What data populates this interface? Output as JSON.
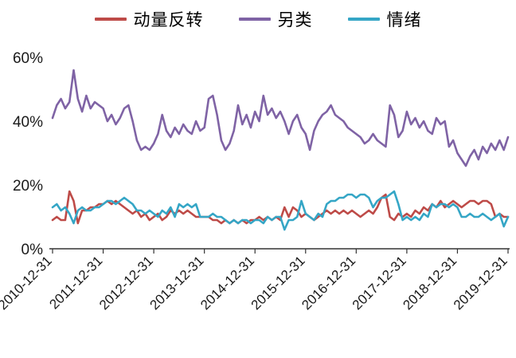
{
  "legend": [
    {
      "label": "动量反转",
      "color": "#be4b48"
    },
    {
      "label": "另类",
      "color": "#7f63a5"
    },
    {
      "label": "情绪",
      "color": "#35a6c6"
    }
  ],
  "chart_data": {
    "type": "line",
    "title": "",
    "xlabel": "",
    "ylabel": "",
    "ylim": [
      0,
      60
    ],
    "y_ticks": [
      0,
      20,
      40,
      60
    ],
    "y_tick_labels": [
      "0%",
      "20%",
      "40%",
      "60%"
    ],
    "x_tick_labels": [
      "2010-12-31",
      "2011-12-31",
      "2012-12-31",
      "2013-12-31",
      "2014-12-31",
      "2015-12-31",
      "2016-12-31",
      "2017-12-31",
      "2018-12-31",
      "2019-12-31"
    ],
    "x_tick_indices": [
      0,
      12,
      24,
      36,
      48,
      60,
      72,
      84,
      96,
      108
    ],
    "x_unit": "monthly points from 2010-12-31 to 2019-12-31",
    "grid": false,
    "legend_position": "top",
    "series": [
      {
        "name": "动量反转",
        "color": "#be4b48",
        "values": [
          9,
          10,
          9,
          9,
          18,
          15,
          8,
          12,
          12,
          13,
          13,
          14,
          14,
          15,
          14,
          15,
          14,
          13,
          12,
          11,
          12,
          10,
          11,
          9,
          10,
          11,
          9,
          10,
          12,
          11,
          12,
          11,
          12,
          11,
          10,
          10,
          10,
          10,
          9,
          9,
          8,
          9,
          8,
          9,
          8,
          9,
          8,
          9,
          9,
          10,
          9,
          10,
          9,
          10,
          9,
          13,
          10,
          13,
          12,
          10,
          11,
          10,
          9,
          10,
          11,
          12,
          11,
          12,
          11,
          12,
          11,
          12,
          11,
          10,
          11,
          12,
          11,
          13,
          16,
          17,
          10,
          9,
          11,
          10,
          11,
          10,
          12,
          11,
          13,
          12,
          14,
          13,
          15,
          13,
          14,
          15,
          14,
          13,
          14,
          15,
          15,
          14,
          15,
          15,
          14,
          10,
          11,
          10,
          10
        ]
      },
      {
        "name": "另类",
        "color": "#7f63a5",
        "values": [
          41,
          45,
          47,
          44,
          46,
          56,
          47,
          43,
          48,
          44,
          46,
          45,
          44,
          40,
          42,
          39,
          41,
          44,
          45,
          40,
          34,
          31,
          32,
          31,
          33,
          36,
          42,
          37,
          35,
          38,
          36,
          39,
          37,
          36,
          40,
          37,
          38,
          47,
          48,
          42,
          34,
          31,
          33,
          37,
          45,
          39,
          42,
          38,
          43,
          40,
          48,
          42,
          44,
          41,
          43,
          40,
          36,
          40,
          42,
          38,
          36,
          31,
          37,
          40,
          42,
          43,
          45,
          42,
          41,
          40,
          38,
          37,
          36,
          35,
          33,
          34,
          36,
          34,
          33,
          32,
          45,
          42,
          35,
          37,
          43,
          39,
          41,
          38,
          40,
          37,
          36,
          41,
          39,
          40,
          32,
          34,
          30,
          28,
          26,
          29,
          31,
          28,
          32,
          30,
          33,
          31,
          34,
          31,
          35
        ]
      },
      {
        "name": "情绪",
        "color": "#35a6c6",
        "values": [
          13,
          14,
          12,
          13,
          11,
          8,
          12,
          13,
          12,
          12,
          13,
          13,
          14,
          15,
          15,
          14,
          15,
          16,
          15,
          14,
          12,
          12,
          11,
          12,
          11,
          10,
          12,
          11,
          13,
          10,
          14,
          13,
          14,
          13,
          14,
          10,
          10,
          10,
          11,
          10,
          10,
          9,
          8,
          9,
          8,
          9,
          9,
          8,
          9,
          9,
          8,
          10,
          9,
          10,
          10,
          6,
          9,
          9,
          10,
          15,
          11,
          10,
          9,
          11,
          10,
          14,
          15,
          15,
          16,
          16,
          17,
          17,
          16,
          17,
          17,
          16,
          13,
          15,
          16,
          16,
          17,
          18,
          14,
          9,
          10,
          9,
          10,
          9,
          11,
          10,
          14,
          13,
          14,
          14,
          13,
          14,
          13,
          10,
          10,
          11,
          10,
          10,
          11,
          10,
          9,
          10,
          11,
          7,
          10
        ]
      }
    ]
  }
}
